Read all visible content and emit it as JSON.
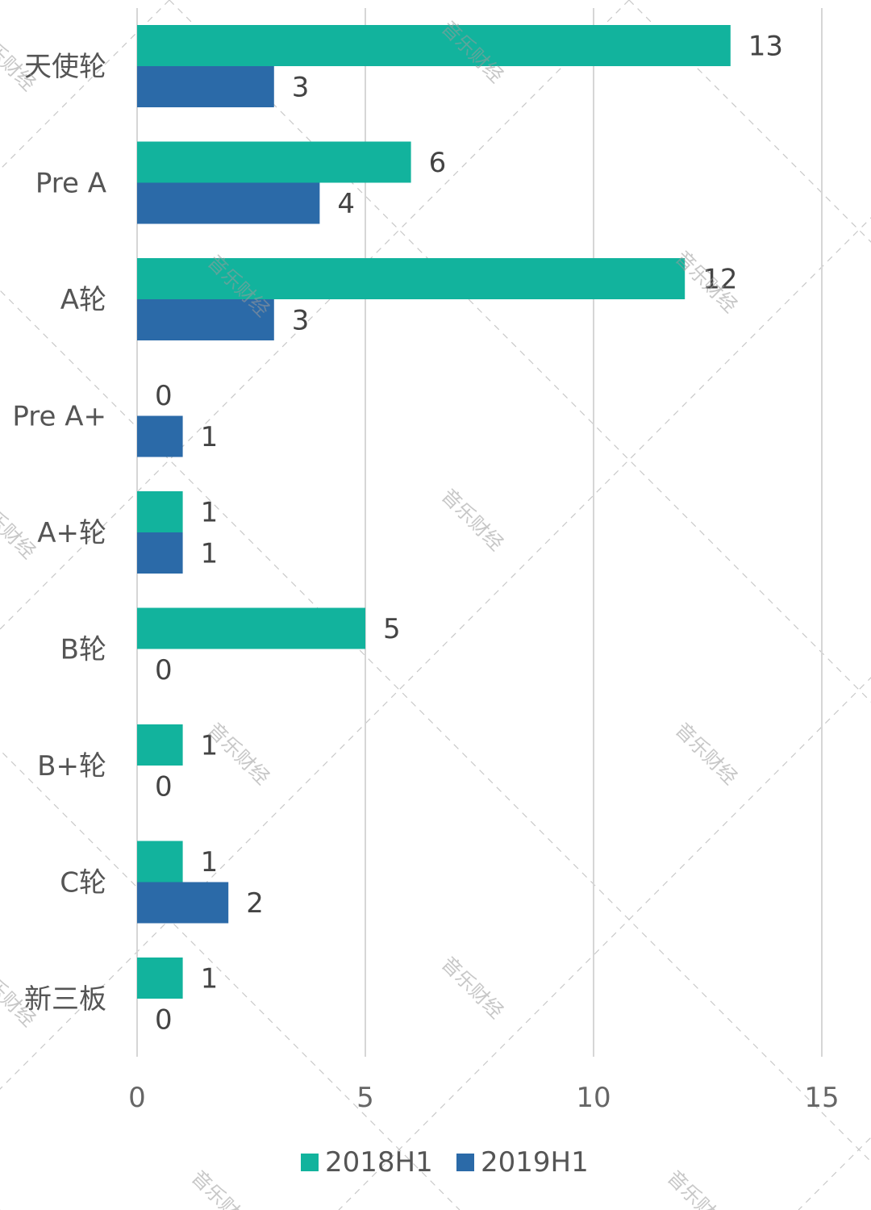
{
  "chart_data": {
    "type": "bar",
    "orientation": "horizontal",
    "categories": [
      "天使轮",
      "Pre A",
      "A轮",
      "Pre A+",
      "A+轮",
      "B轮",
      "B+轮",
      "C轮",
      "新三板"
    ],
    "series": [
      {
        "name": "2018H1",
        "color": "#12b39d",
        "values": [
          13,
          6,
          12,
          0,
          1,
          5,
          1,
          1,
          1
        ]
      },
      {
        "name": "2019H1",
        "color": "#2b6aa8",
        "values": [
          3,
          4,
          3,
          1,
          1,
          0,
          0,
          2,
          0
        ]
      }
    ],
    "xlim": [
      0,
      15
    ],
    "xticks": [
      0,
      5,
      10,
      15
    ],
    "grid": "vertical",
    "legend_position": "bottom",
    "data_labels": true,
    "title": "",
    "xlabel": "",
    "ylabel": ""
  },
  "watermark": "音乐财经"
}
